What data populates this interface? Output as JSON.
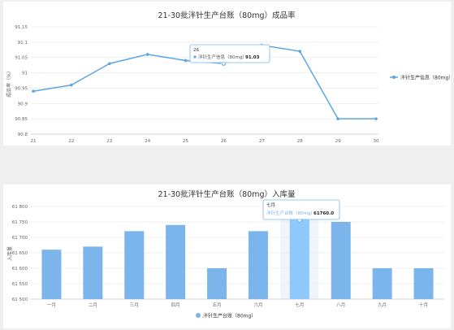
{
  "chart_data": [
    {
      "type": "line",
      "title": "21-30批泮针生产台账（80mg）成品率",
      "ylabel": "成品率（%）",
      "xlabel": "",
      "categories": [
        "21",
        "22",
        "23",
        "24",
        "25",
        "26",
        "27",
        "28",
        "29",
        "30"
      ],
      "series": [
        {
          "name": "泮针生产信息（80mg）",
          "values": [
            90.94,
            90.96,
            91.03,
            91.06,
            91.04,
            91.03,
            91.09,
            91.07,
            90.85,
            90.85
          ]
        }
      ],
      "ylim": [
        90.8,
        91.15
      ],
      "yticks": [
        "91.15",
        "91.1",
        "91.05",
        "91",
        "90.95",
        "90.9",
        "90.85",
        "90.8"
      ],
      "grid": true,
      "legend": "right",
      "color": "#5aa6e6",
      "tooltip": {
        "title": "26",
        "series": "泮针生产信息（80mg）",
        "value": "91.03",
        "category_index": 5
      }
    },
    {
      "type": "bar",
      "title": "21-30批泮针生产台账（80mg）入库量",
      "ylabel": "入库量",
      "xlabel": "",
      "categories": [
        "一月",
        "二月",
        "三月",
        "四月",
        "五月",
        "六月",
        "七月",
        "八月",
        "九月",
        "十月"
      ],
      "series": [
        {
          "name": "泮针生产台账（80mg）",
          "values": [
            61660,
            61670,
            61720,
            61740,
            61600,
            61720,
            61760,
            61750,
            61600,
            61600
          ]
        }
      ],
      "ylim": [
        61500,
        61800
      ],
      "yticks": [
        "61 800",
        "61 750",
        "61 700",
        "61 650",
        "61 600",
        "61 550",
        "61 500"
      ],
      "grid": true,
      "legend": "bottom",
      "color": "#7cb5ec",
      "highlight_color": "#8fc9fb",
      "tooltip": {
        "title": "七月",
        "series": "泮针生产台账（80mg）",
        "value": "61760.0",
        "category_index": 6
      }
    }
  ]
}
